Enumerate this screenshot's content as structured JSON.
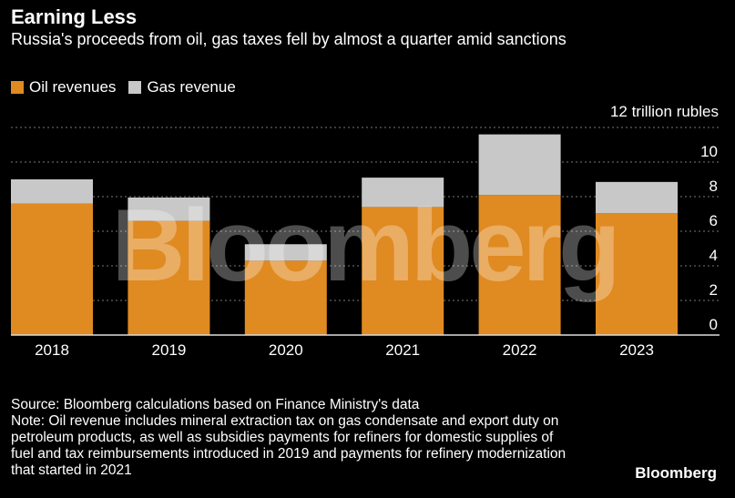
{
  "title": "Earning Less",
  "subtitle": "Russia's proceeds from oil, gas taxes fell by almost a quarter amid sanctions",
  "watermark": "Bloomberg",
  "logo": "Bloomberg",
  "source": "Source: Bloomberg calculations based on Finance Ministry's data",
  "note": "Note: Oil revenue includes mineral extraction tax on gas condensate and export duty on petroleum products, as well as subsidies payments for refiners for domestic supplies of fuel and tax reimbursements introduced in 2019 and payments for refinery modernization that started in 2021",
  "chart_data": {
    "type": "bar",
    "stacked": true,
    "categories": [
      "2018",
      "2019",
      "2020",
      "2021",
      "2022",
      "2023"
    ],
    "series": [
      {
        "name": "Oil revenues",
        "color": "#e08a22",
        "values": [
          7.6,
          6.6,
          4.3,
          7.4,
          8.1,
          7.05
        ]
      },
      {
        "name": "Gas revenue",
        "color": "#c8c8c8",
        "values": [
          1.4,
          1.35,
          0.95,
          1.7,
          3.5,
          1.8
        ]
      }
    ],
    "ylabel": "12 trillion rubles",
    "ylim": [
      0,
      12
    ],
    "yticks": [
      "0",
      "2",
      "4",
      "6",
      "8",
      "10"
    ],
    "grid": true,
    "legend": "top-left"
  }
}
